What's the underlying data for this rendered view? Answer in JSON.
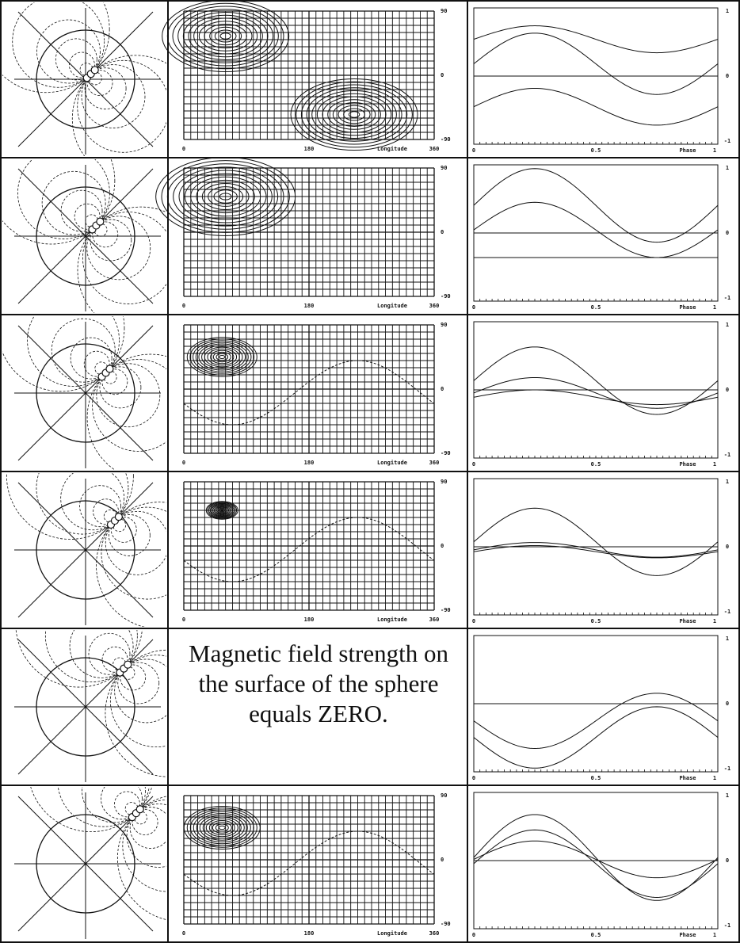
{
  "rows": [
    {
      "map": {
        "lat_ticks": [
          "90",
          "0",
          "-90"
        ],
        "lon_ticks": [
          "0",
          "180",
          "Longitude",
          "360"
        ]
      },
      "phase": {
        "y_ticks": [
          "1",
          "0",
          "-1"
        ],
        "x_ticks": [
          "0",
          "0.5",
          "Phase",
          "1"
        ]
      }
    },
    {
      "map": {
        "lat_ticks": [
          "90",
          "0",
          "-90"
        ],
        "lon_ticks": [
          "0",
          "180",
          "Longitude",
          "360"
        ]
      },
      "phase": {
        "y_ticks": [
          "1",
          "0",
          "-1"
        ],
        "x_ticks": [
          "0",
          "0.5",
          "Phase",
          "1"
        ]
      }
    },
    {
      "map": {
        "lat_ticks": [
          "90",
          "0",
          "-90"
        ],
        "lon_ticks": [
          "0",
          "180",
          "Longitude",
          "360"
        ]
      },
      "phase": {
        "y_ticks": [
          "1",
          "0",
          "-1"
        ],
        "x_ticks": [
          "0",
          "0.5",
          "Phase",
          "1"
        ]
      }
    },
    {
      "map": {
        "lat_ticks": [
          "90",
          "0",
          "-90"
        ],
        "lon_ticks": [
          "0",
          "180",
          "Longitude",
          "360"
        ]
      },
      "phase": {
        "y_ticks": [
          "1",
          "0",
          "-1"
        ],
        "x_ticks": [
          "0",
          "0.5",
          "Phase",
          "1"
        ]
      }
    },
    {
      "note": "Magnetic field strength on the surface of the sphere equals ZERO.",
      "phase": {
        "y_ticks": [
          "1",
          "0",
          "-1"
        ],
        "x_ticks": [
          "0",
          "0.5",
          "Phase",
          "1"
        ]
      }
    },
    {
      "map": {
        "lat_ticks": [
          "90",
          "0",
          "-90"
        ],
        "lon_ticks": [
          "0",
          "180",
          "Longitude",
          "360"
        ]
      },
      "phase": {
        "y_ticks": [
          "1",
          "0",
          "-1"
        ],
        "x_ticks": [
          "0",
          "0.5",
          "Phase",
          "1"
        ]
      }
    }
  ]
}
